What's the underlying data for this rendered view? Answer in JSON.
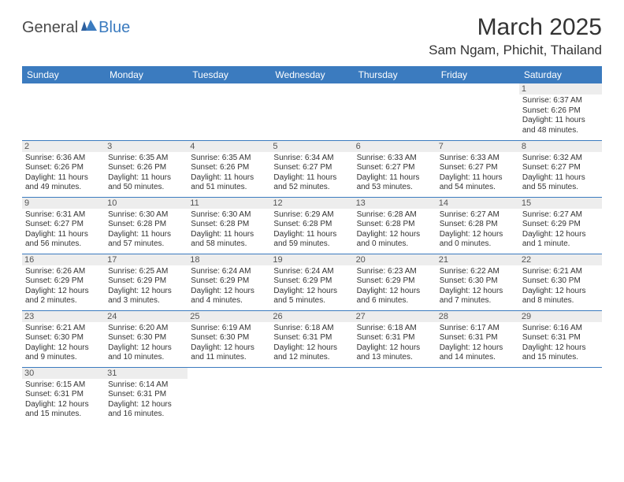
{
  "logo": {
    "part1": "General",
    "part2": "Blue"
  },
  "title": "March 2025",
  "location": "Sam Ngam, Phichit, Thailand",
  "colors": {
    "headerBg": "#3b7bbf",
    "border": "#3b7bbf",
    "dayBg": "#ededed"
  },
  "weekdays": [
    "Sunday",
    "Monday",
    "Tuesday",
    "Wednesday",
    "Thursday",
    "Friday",
    "Saturday"
  ],
  "weeks": [
    [
      null,
      null,
      null,
      null,
      null,
      null,
      {
        "n": "1",
        "sr": "Sunrise: 6:37 AM",
        "ss": "Sunset: 6:26 PM",
        "dl": "Daylight: 11 hours and 48 minutes."
      }
    ],
    [
      {
        "n": "2",
        "sr": "Sunrise: 6:36 AM",
        "ss": "Sunset: 6:26 PM",
        "dl": "Daylight: 11 hours and 49 minutes."
      },
      {
        "n": "3",
        "sr": "Sunrise: 6:35 AM",
        "ss": "Sunset: 6:26 PM",
        "dl": "Daylight: 11 hours and 50 minutes."
      },
      {
        "n": "4",
        "sr": "Sunrise: 6:35 AM",
        "ss": "Sunset: 6:26 PM",
        "dl": "Daylight: 11 hours and 51 minutes."
      },
      {
        "n": "5",
        "sr": "Sunrise: 6:34 AM",
        "ss": "Sunset: 6:27 PM",
        "dl": "Daylight: 11 hours and 52 minutes."
      },
      {
        "n": "6",
        "sr": "Sunrise: 6:33 AM",
        "ss": "Sunset: 6:27 PM",
        "dl": "Daylight: 11 hours and 53 minutes."
      },
      {
        "n": "7",
        "sr": "Sunrise: 6:33 AM",
        "ss": "Sunset: 6:27 PM",
        "dl": "Daylight: 11 hours and 54 minutes."
      },
      {
        "n": "8",
        "sr": "Sunrise: 6:32 AM",
        "ss": "Sunset: 6:27 PM",
        "dl": "Daylight: 11 hours and 55 minutes."
      }
    ],
    [
      {
        "n": "9",
        "sr": "Sunrise: 6:31 AM",
        "ss": "Sunset: 6:27 PM",
        "dl": "Daylight: 11 hours and 56 minutes."
      },
      {
        "n": "10",
        "sr": "Sunrise: 6:30 AM",
        "ss": "Sunset: 6:28 PM",
        "dl": "Daylight: 11 hours and 57 minutes."
      },
      {
        "n": "11",
        "sr": "Sunrise: 6:30 AM",
        "ss": "Sunset: 6:28 PM",
        "dl": "Daylight: 11 hours and 58 minutes."
      },
      {
        "n": "12",
        "sr": "Sunrise: 6:29 AM",
        "ss": "Sunset: 6:28 PM",
        "dl": "Daylight: 11 hours and 59 minutes."
      },
      {
        "n": "13",
        "sr": "Sunrise: 6:28 AM",
        "ss": "Sunset: 6:28 PM",
        "dl": "Daylight: 12 hours and 0 minutes."
      },
      {
        "n": "14",
        "sr": "Sunrise: 6:27 AM",
        "ss": "Sunset: 6:28 PM",
        "dl": "Daylight: 12 hours and 0 minutes."
      },
      {
        "n": "15",
        "sr": "Sunrise: 6:27 AM",
        "ss": "Sunset: 6:29 PM",
        "dl": "Daylight: 12 hours and 1 minute."
      }
    ],
    [
      {
        "n": "16",
        "sr": "Sunrise: 6:26 AM",
        "ss": "Sunset: 6:29 PM",
        "dl": "Daylight: 12 hours and 2 minutes."
      },
      {
        "n": "17",
        "sr": "Sunrise: 6:25 AM",
        "ss": "Sunset: 6:29 PM",
        "dl": "Daylight: 12 hours and 3 minutes."
      },
      {
        "n": "18",
        "sr": "Sunrise: 6:24 AM",
        "ss": "Sunset: 6:29 PM",
        "dl": "Daylight: 12 hours and 4 minutes."
      },
      {
        "n": "19",
        "sr": "Sunrise: 6:24 AM",
        "ss": "Sunset: 6:29 PM",
        "dl": "Daylight: 12 hours and 5 minutes."
      },
      {
        "n": "20",
        "sr": "Sunrise: 6:23 AM",
        "ss": "Sunset: 6:29 PM",
        "dl": "Daylight: 12 hours and 6 minutes."
      },
      {
        "n": "21",
        "sr": "Sunrise: 6:22 AM",
        "ss": "Sunset: 6:30 PM",
        "dl": "Daylight: 12 hours and 7 minutes."
      },
      {
        "n": "22",
        "sr": "Sunrise: 6:21 AM",
        "ss": "Sunset: 6:30 PM",
        "dl": "Daylight: 12 hours and 8 minutes."
      }
    ],
    [
      {
        "n": "23",
        "sr": "Sunrise: 6:21 AM",
        "ss": "Sunset: 6:30 PM",
        "dl": "Daylight: 12 hours and 9 minutes."
      },
      {
        "n": "24",
        "sr": "Sunrise: 6:20 AM",
        "ss": "Sunset: 6:30 PM",
        "dl": "Daylight: 12 hours and 10 minutes."
      },
      {
        "n": "25",
        "sr": "Sunrise: 6:19 AM",
        "ss": "Sunset: 6:30 PM",
        "dl": "Daylight: 12 hours and 11 minutes."
      },
      {
        "n": "26",
        "sr": "Sunrise: 6:18 AM",
        "ss": "Sunset: 6:31 PM",
        "dl": "Daylight: 12 hours and 12 minutes."
      },
      {
        "n": "27",
        "sr": "Sunrise: 6:18 AM",
        "ss": "Sunset: 6:31 PM",
        "dl": "Daylight: 12 hours and 13 minutes."
      },
      {
        "n": "28",
        "sr": "Sunrise: 6:17 AM",
        "ss": "Sunset: 6:31 PM",
        "dl": "Daylight: 12 hours and 14 minutes."
      },
      {
        "n": "29",
        "sr": "Sunrise: 6:16 AM",
        "ss": "Sunset: 6:31 PM",
        "dl": "Daylight: 12 hours and 15 minutes."
      }
    ],
    [
      {
        "n": "30",
        "sr": "Sunrise: 6:15 AM",
        "ss": "Sunset: 6:31 PM",
        "dl": "Daylight: 12 hours and 15 minutes."
      },
      {
        "n": "31",
        "sr": "Sunrise: 6:14 AM",
        "ss": "Sunset: 6:31 PM",
        "dl": "Daylight: 12 hours and 16 minutes."
      },
      null,
      null,
      null,
      null,
      null
    ]
  ]
}
